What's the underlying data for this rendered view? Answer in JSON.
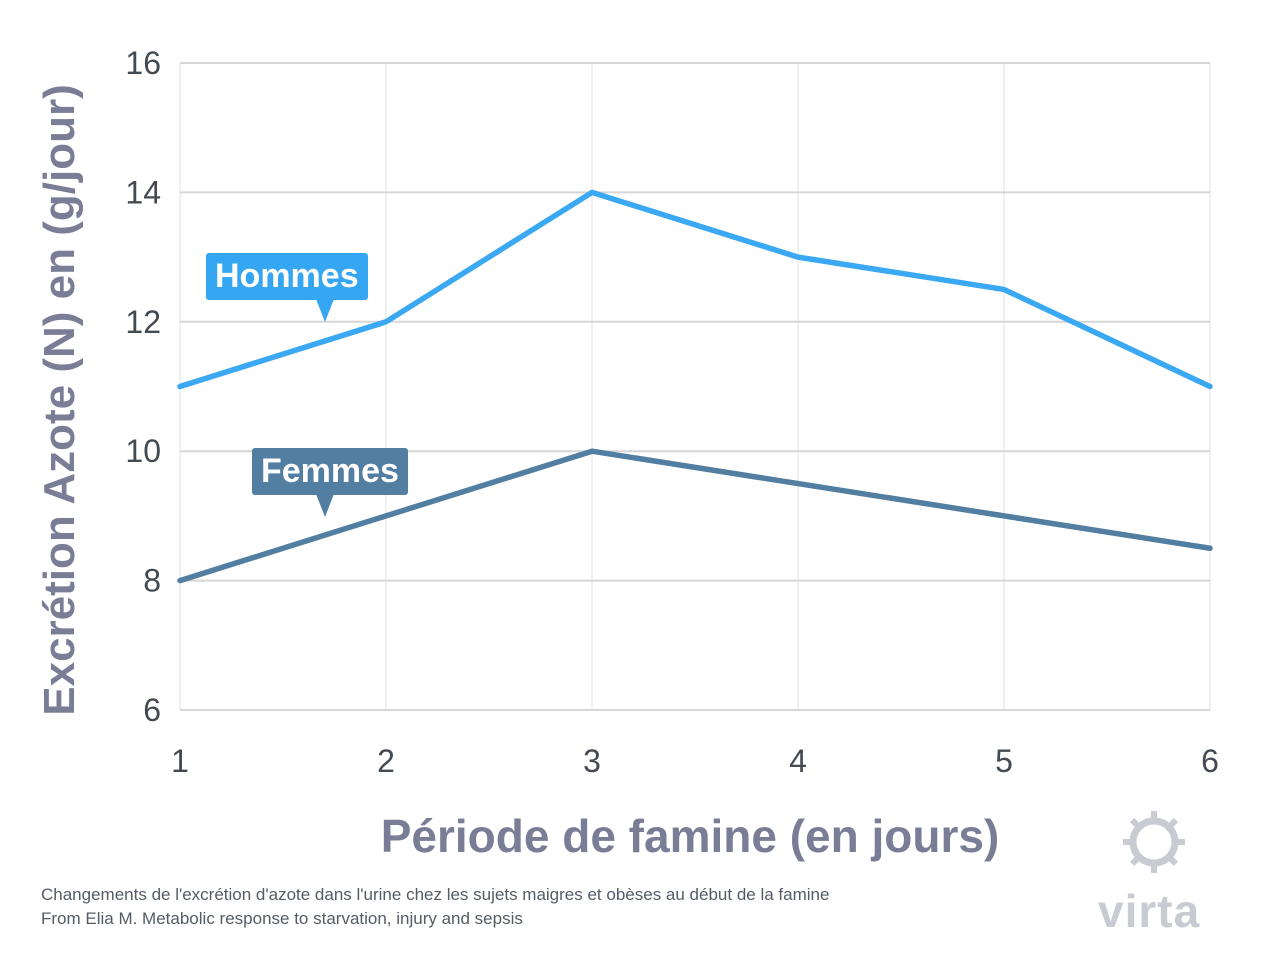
{
  "chart_data": {
    "type": "line",
    "x": [
      1,
      2,
      3,
      4,
      5,
      6
    ],
    "xlabel": "Période de famine (en jours)",
    "ylabel": "Excrétion Azote (N) en (g/jour)",
    "xlim": [
      1,
      6
    ],
    "ylim": [
      6,
      16
    ],
    "yticks": [
      6,
      8,
      10,
      12,
      14,
      16
    ],
    "xticks": [
      1,
      2,
      3,
      4,
      5,
      6
    ],
    "grid": true,
    "series": [
      {
        "name": "Hommes",
        "values": [
          11,
          12,
          14,
          13,
          12.5,
          11
        ],
        "color": "#3aa8f2"
      },
      {
        "name": "Femmes",
        "values": [
          8,
          9,
          10,
          9.5,
          9,
          8.5
        ],
        "color": "#527ea1"
      }
    ]
  },
  "caption": {
    "line1": "Changements de l'excrétion d'azote dans l'urine chez les sujets maigres et obèses au début de la famine",
    "line2": "From Elia M. Metabolic response to starvation, injury and sepsis"
  },
  "logo": {
    "text": "virta",
    "icon": "sun-icon"
  }
}
